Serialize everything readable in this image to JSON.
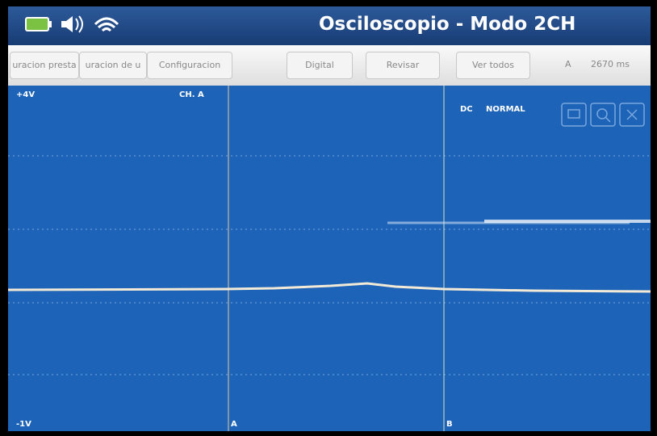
{
  "header": {
    "title": "Osciloscopio - Modo 2CH"
  },
  "toolbar": {
    "buttons": [
      "uracion presta",
      "uracion de u",
      "Configuracion",
      "Digital",
      "Revisar",
      "Ver todos"
    ],
    "channel": "A",
    "time": "2670 ms"
  },
  "scope": {
    "top_label": "+4V",
    "bottom_label": "-1V",
    "channel_label": "CH. A",
    "coupling": "DC",
    "mode": "NORMAL",
    "cursor_a": "A",
    "cursor_b": "B"
  }
}
